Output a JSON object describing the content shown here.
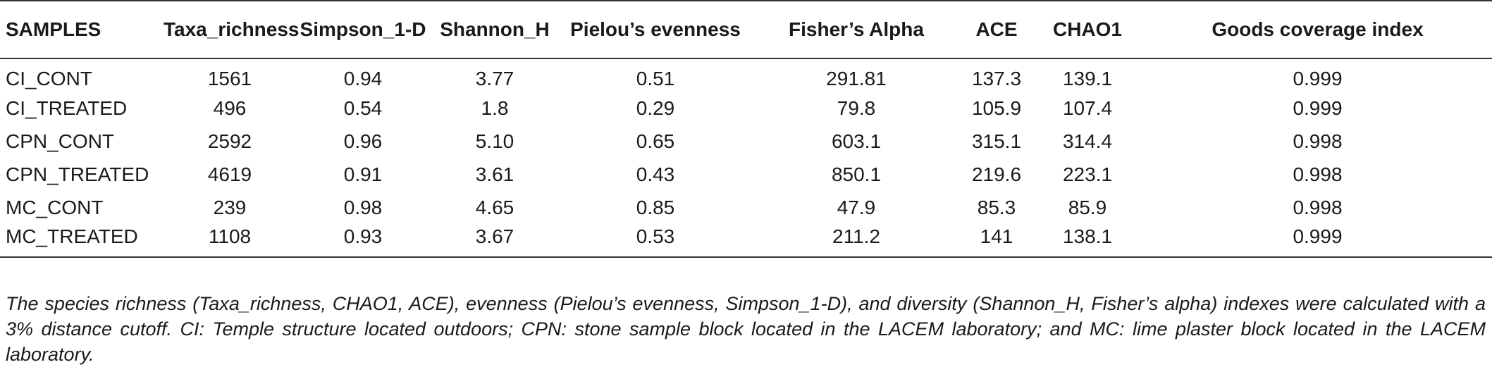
{
  "table": {
    "headers": [
      "SAMPLES",
      "Taxa_richness",
      "Simpson_1-D",
      "Shannon_H",
      "Pielou’s evenness",
      "Fisher’s Alpha",
      "ACE",
      "CHAO1",
      "Goods coverage index"
    ],
    "rows": [
      [
        "CI_CONT",
        "1561",
        "0.94",
        "3.77",
        "0.51",
        "291.81",
        "137.3",
        "139.1",
        "0.999"
      ],
      [
        "CI_TREATED",
        "496",
        "0.54",
        "1.8",
        "0.29",
        "79.8",
        "105.9",
        "107.4",
        "0.999"
      ],
      [
        "CPN_CONT",
        "2592",
        "0.96",
        "5.10",
        "0.65",
        "603.1",
        "315.1",
        "314.4",
        "0.998"
      ],
      [
        "CPN_TREATED",
        "4619",
        "0.91",
        "3.61",
        "0.43",
        "850.1",
        "219.6",
        "223.1",
        "0.998"
      ],
      [
        "MC_CONT",
        "239",
        "0.98",
        "4.65",
        "0.85",
        "47.9",
        "85.3",
        "85.9",
        "0.998"
      ],
      [
        "MC_TREATED",
        "1108",
        "0.93",
        "3.67",
        "0.53",
        "211.2",
        "141",
        "138.1",
        "0.999"
      ]
    ]
  },
  "footnote": "The species richness (Taxa_richness, CHAO1, ACE), evenness (Pielou’s evenness, Simpson_1-D), and diversity (Shannon_H, Fisher’s alpha) indexes were calculated with a 3% distance cutoff. CI: Temple structure located outdoors; CPN: stone sample block located in the LACEM laboratory; and MC: lime plaster block located in the LACEM laboratory."
}
